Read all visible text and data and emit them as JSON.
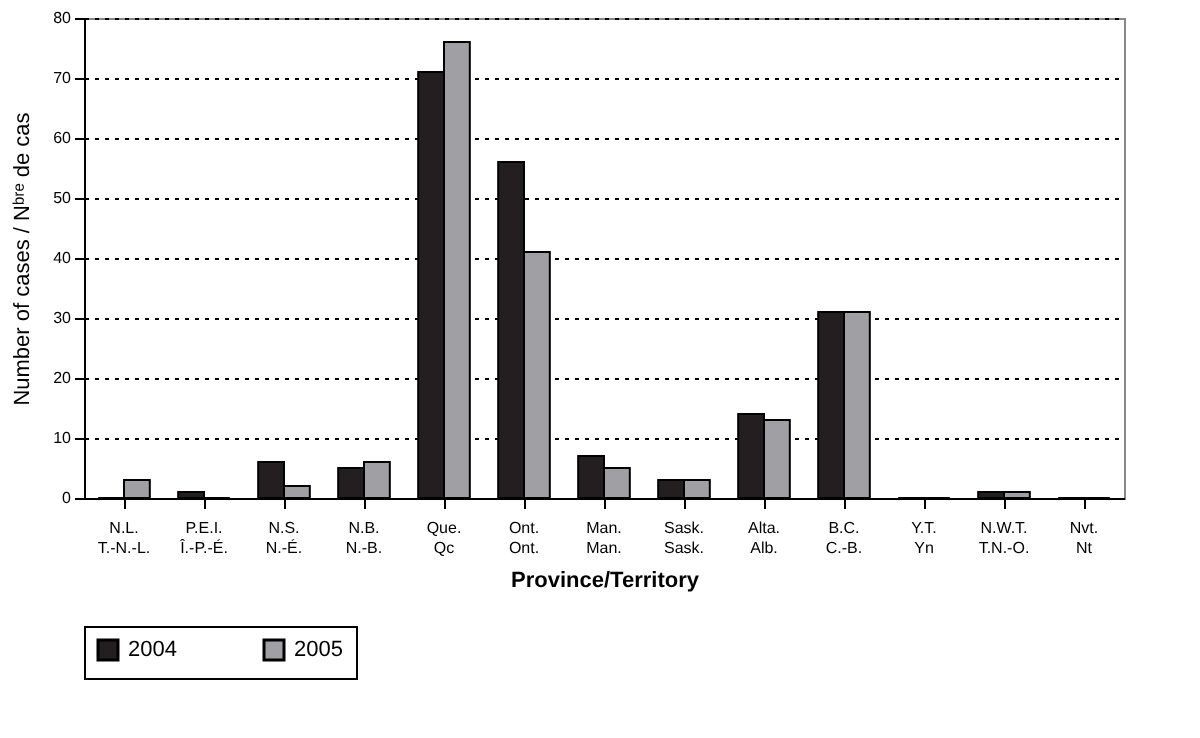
{
  "chart_data": {
    "type": "bar",
    "xlabel": "Province/Territory",
    "ylabel": "Number of cases / Nᵇʳᵉ de cas",
    "categories": [
      "N.L.\nT.-N.-L.",
      "P.E.I.\nÎ.-P.-É.",
      "N.S.\nN.-É.",
      "N.B.\nN.-B.",
      "Que.\nQc",
      "Ont.\nOnt.",
      "Man.\nMan.",
      "Sask.\nSask.",
      "Alta.\nAlb.",
      "B.C.\nC.-B.",
      "Y.T.\nYn",
      "N.W.T.\nT.N.-O.",
      "Nvt.\nNt"
    ],
    "series": [
      {
        "name": "2004",
        "color": "#231f20",
        "values": [
          0,
          1,
          6,
          5,
          71,
          56,
          7,
          3,
          14,
          31,
          0,
          1,
          0
        ]
      },
      {
        "name": "2005",
        "color": "#a0a0a4",
        "values": [
          3,
          0,
          2,
          6,
          76,
          41,
          5,
          3,
          13,
          31,
          0,
          1,
          0
        ]
      }
    ],
    "ylim": [
      0,
      80
    ],
    "yticks": [
      0,
      10,
      20,
      30,
      40,
      50,
      60,
      70,
      80
    ],
    "grid": "y",
    "legend": "bottom"
  }
}
